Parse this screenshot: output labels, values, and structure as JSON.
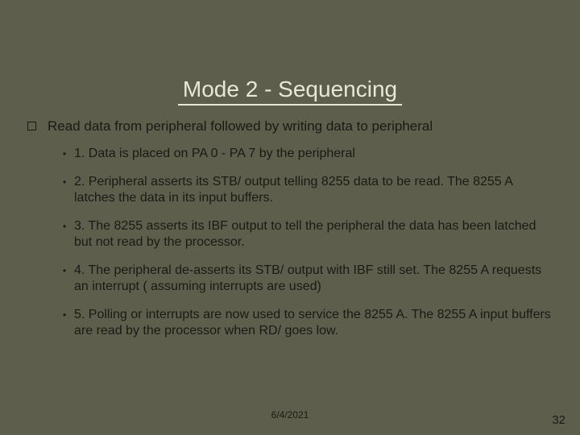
{
  "background_color": "#5e5e4d",
  "title_color": "#e8e8d8",
  "text_color": "#1a1a14",
  "title": "Mode 2 - Sequencing",
  "main_bullet": "Read data from peripheral followed by writing data to peripheral",
  "sub_bullets": [
    "1.  Data is placed on PA 0 - PA 7 by the peripheral",
    "2.  Peripheral asserts its STB/ output telling 8255 data to be read. The 8255 A latches the data in its input buffers.",
    "3.  The 8255 asserts its IBF output to tell the peripheral the data has been latched but not read by the processor.",
    "4.  The peripheral de-asserts its STB/ output with IBF still set. The 8255 A requests an interrupt ( assuming interrupts are used)",
    "5.  Polling or interrupts are now used to service the 8255 A. The 8255 A input buffers are read by the processor when RD/ goes low."
  ],
  "footer_date": "6/4/2021",
  "page_number": "32",
  "title_fontsize": 28,
  "body_fontsize": 17,
  "sub_fontsize": 16,
  "footer_fontsize": 12
}
